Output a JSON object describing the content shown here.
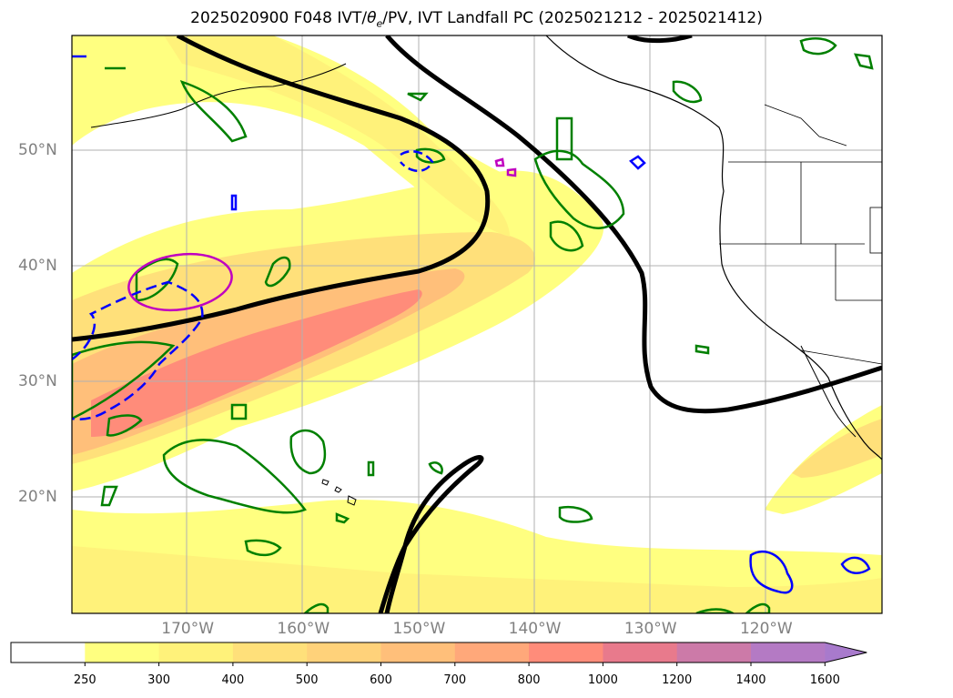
{
  "title": "2025020900 F048 IVT/θe/PV, IVT Landfall PC (2025021212 - 2025021412)",
  "title_parts": {
    "prefix": "2025020900 F048 IVT/",
    "theta": "θ",
    "sub": "e",
    "suffix": "/PV, IVT Landfall PC (2025021212 - 2025021412)"
  },
  "map": {
    "extent": {
      "lon_min": -180,
      "lon_max": -110,
      "lat_min": 10,
      "lat_max": 60
    },
    "gridlines": true,
    "lat_ticks": [
      {
        "value": 50,
        "label": "50°N"
      },
      {
        "value": 40,
        "label": "40°N"
      },
      {
        "value": 30,
        "label": "30°N"
      },
      {
        "value": 20,
        "label": "20°N"
      }
    ],
    "lon_ticks": [
      {
        "value": -170,
        "label": "170°W"
      },
      {
        "value": -160,
        "label": "160°W"
      },
      {
        "value": -150,
        "label": "150°W"
      },
      {
        "value": -140,
        "label": "140°W"
      },
      {
        "value": -130,
        "label": "130°W"
      },
      {
        "value": -120,
        "label": "120°W"
      }
    ]
  },
  "colorbar": {
    "levels": [
      "250",
      "300",
      "400",
      "500",
      "600",
      "700",
      "800",
      "1000",
      "1200",
      "1400",
      "1600"
    ],
    "colors": [
      "#ffffff",
      "#ffff80",
      "#fff27a",
      "#ffe07a",
      "#ffd27a",
      "#ffbf7a",
      "#ffa87a",
      "#ff8c7a",
      "#e87a8c",
      "#cc7aa8",
      "#b47ac4",
      "#a87acc"
    ],
    "extend": "max"
  },
  "colors": {
    "theta_e_contour": "#000000",
    "pv_contour": "#008000",
    "negative_contour": "#0000ff",
    "landfall_pc": "#c000c0",
    "coastline": "#000000",
    "grid": "#b0b0b0"
  }
}
